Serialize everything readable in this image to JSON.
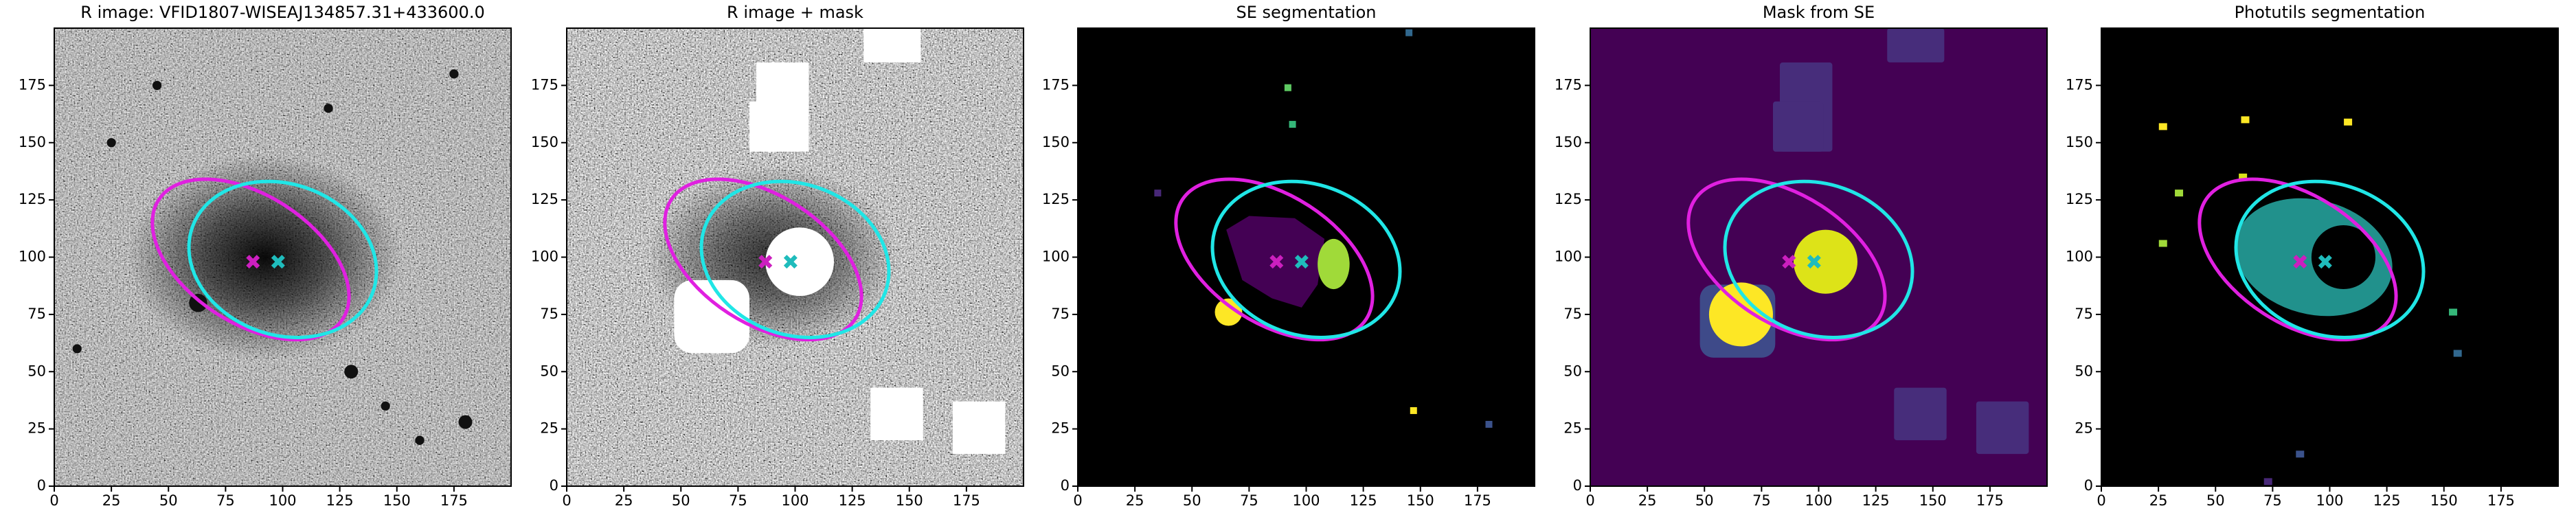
{
  "chart_data": [
    {
      "type": "image",
      "title": "R image: VFID1807-WISEAJ134857.31+433600.0",
      "xlim": [
        0,
        200
      ],
      "ylim": [
        0,
        200
      ],
      "xticks": [
        0,
        25,
        50,
        75,
        100,
        125,
        150,
        175
      ],
      "yticks": [
        0,
        25,
        50,
        75,
        100,
        125,
        150,
        175
      ],
      "markers": [
        {
          "color": "#cc1fbf",
          "x": 87,
          "y": 98
        },
        {
          "color": "#1fbcbc",
          "x": 98,
          "y": 98
        }
      ],
      "ellipses": [
        {
          "color": "#e020e0",
          "x": 86,
          "y": 99,
          "a": 48,
          "b": 28,
          "angle": -33
        },
        {
          "color": "#20e6e6",
          "x": 100,
          "y": 99,
          "a": 42,
          "b": 33,
          "angle": -20
        }
      ]
    },
    {
      "type": "image",
      "title": "R image + mask",
      "xlim": [
        0,
        200
      ],
      "ylim": [
        0,
        200
      ],
      "xticks": [
        0,
        25,
        50,
        75,
        100,
        125,
        150,
        175
      ],
      "yticks": [
        0,
        25,
        50,
        75,
        100,
        125,
        150,
        175
      ],
      "markers": [
        {
          "color": "#cc1fbf",
          "x": 87,
          "y": 98
        },
        {
          "color": "#1fbcbc",
          "x": 98,
          "y": 98
        }
      ],
      "ellipses": [
        {
          "color": "#e020e0",
          "x": 86,
          "y": 99,
          "a": 48,
          "b": 28,
          "angle": -33
        },
        {
          "color": "#20e6e6",
          "x": 100,
          "y": 99,
          "a": 42,
          "b": 33,
          "angle": -20
        }
      ]
    },
    {
      "type": "image",
      "title": "SE segmentation",
      "xlim": [
        0,
        200
      ],
      "ylim": [
        0,
        200
      ],
      "xticks": [
        0,
        25,
        50,
        75,
        100,
        125,
        150,
        175
      ],
      "yticks": [
        0,
        25,
        50,
        75,
        100,
        125,
        150,
        175
      ],
      "markers": [
        {
          "color": "#cc1fbf",
          "x": 87,
          "y": 98
        },
        {
          "color": "#1fbcbc",
          "x": 98,
          "y": 98
        }
      ],
      "ellipses": [
        {
          "color": "#e020e0",
          "x": 86,
          "y": 99,
          "a": 48,
          "b": 28,
          "angle": -33
        },
        {
          "color": "#20e6e6",
          "x": 100,
          "y": 99,
          "a": 42,
          "b": 33,
          "angle": -20
        }
      ]
    },
    {
      "type": "image",
      "title": "Mask from SE",
      "xlim": [
        0,
        200
      ],
      "ylim": [
        0,
        200
      ],
      "xticks": [
        0,
        25,
        50,
        75,
        100,
        125,
        150,
        175
      ],
      "yticks": [
        0,
        25,
        50,
        75,
        100,
        125,
        150,
        175
      ],
      "markers": [
        {
          "color": "#cc1fbf",
          "x": 87,
          "y": 98
        },
        {
          "color": "#1fbcbc",
          "x": 98,
          "y": 98
        }
      ],
      "ellipses": [
        {
          "color": "#e020e0",
          "x": 86,
          "y": 99,
          "a": 48,
          "b": 28,
          "angle": -33
        },
        {
          "color": "#20e6e6",
          "x": 100,
          "y": 99,
          "a": 42,
          "b": 33,
          "angle": -20
        }
      ]
    },
    {
      "type": "image",
      "title": "Photutils segmentation",
      "xlim": [
        0,
        200
      ],
      "ylim": [
        0,
        200
      ],
      "xticks": [
        0,
        25,
        50,
        75,
        100,
        125,
        150,
        175
      ],
      "yticks": [
        0,
        25,
        50,
        75,
        100,
        125,
        150,
        175
      ],
      "markers": [
        {
          "color": "#cc1fbf",
          "x": 87,
          "y": 98
        },
        {
          "color": "#1fbcbc",
          "x": 98,
          "y": 98
        }
      ],
      "ellipses": [
        {
          "color": "#e020e0",
          "x": 86,
          "y": 99,
          "a": 48,
          "b": 28,
          "angle": -33
        },
        {
          "color": "#20e6e6",
          "x": 100,
          "y": 99,
          "a": 42,
          "b": 33,
          "angle": -20
        }
      ]
    }
  ]
}
